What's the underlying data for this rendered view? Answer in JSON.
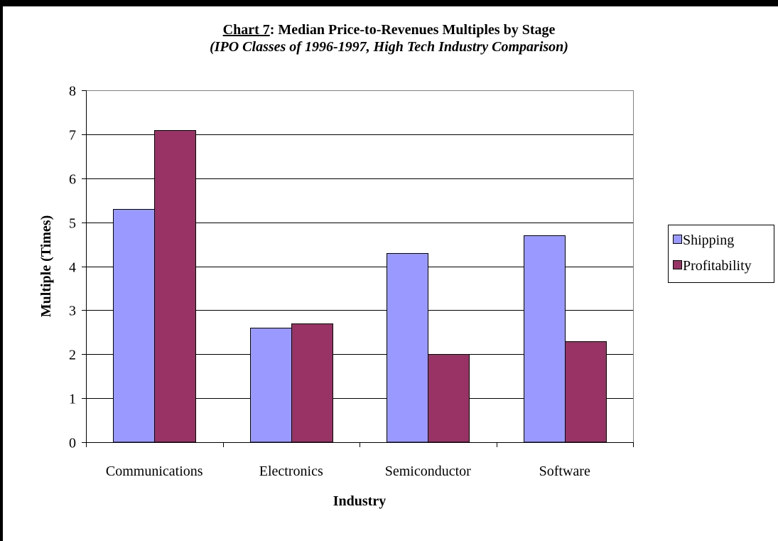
{
  "chart_data": {
    "type": "bar",
    "title_prefix": "Chart 7",
    "title_rest": ": Median Price-to-Revenues Multiples by Stage",
    "subtitle": "(IPO Classes of 1996-1997, High Tech Industry Comparison)",
    "xlabel": "Industry",
    "ylabel": "Multiple (Times)",
    "categories": [
      "Communications",
      "Electronics",
      "Semiconductor",
      "Software"
    ],
    "series": [
      {
        "name": "Shipping",
        "color": "#9999ff",
        "values": [
          5.3,
          2.6,
          4.3,
          4.7
        ]
      },
      {
        "name": "Profitability",
        "color": "#993366",
        "values": [
          7.1,
          2.7,
          2.0,
          2.3
        ]
      }
    ],
    "ylim": [
      0,
      8
    ],
    "yticks": [
      0,
      1,
      2,
      3,
      4,
      5,
      6,
      7,
      8
    ],
    "grid": true,
    "legend_position": "right"
  }
}
